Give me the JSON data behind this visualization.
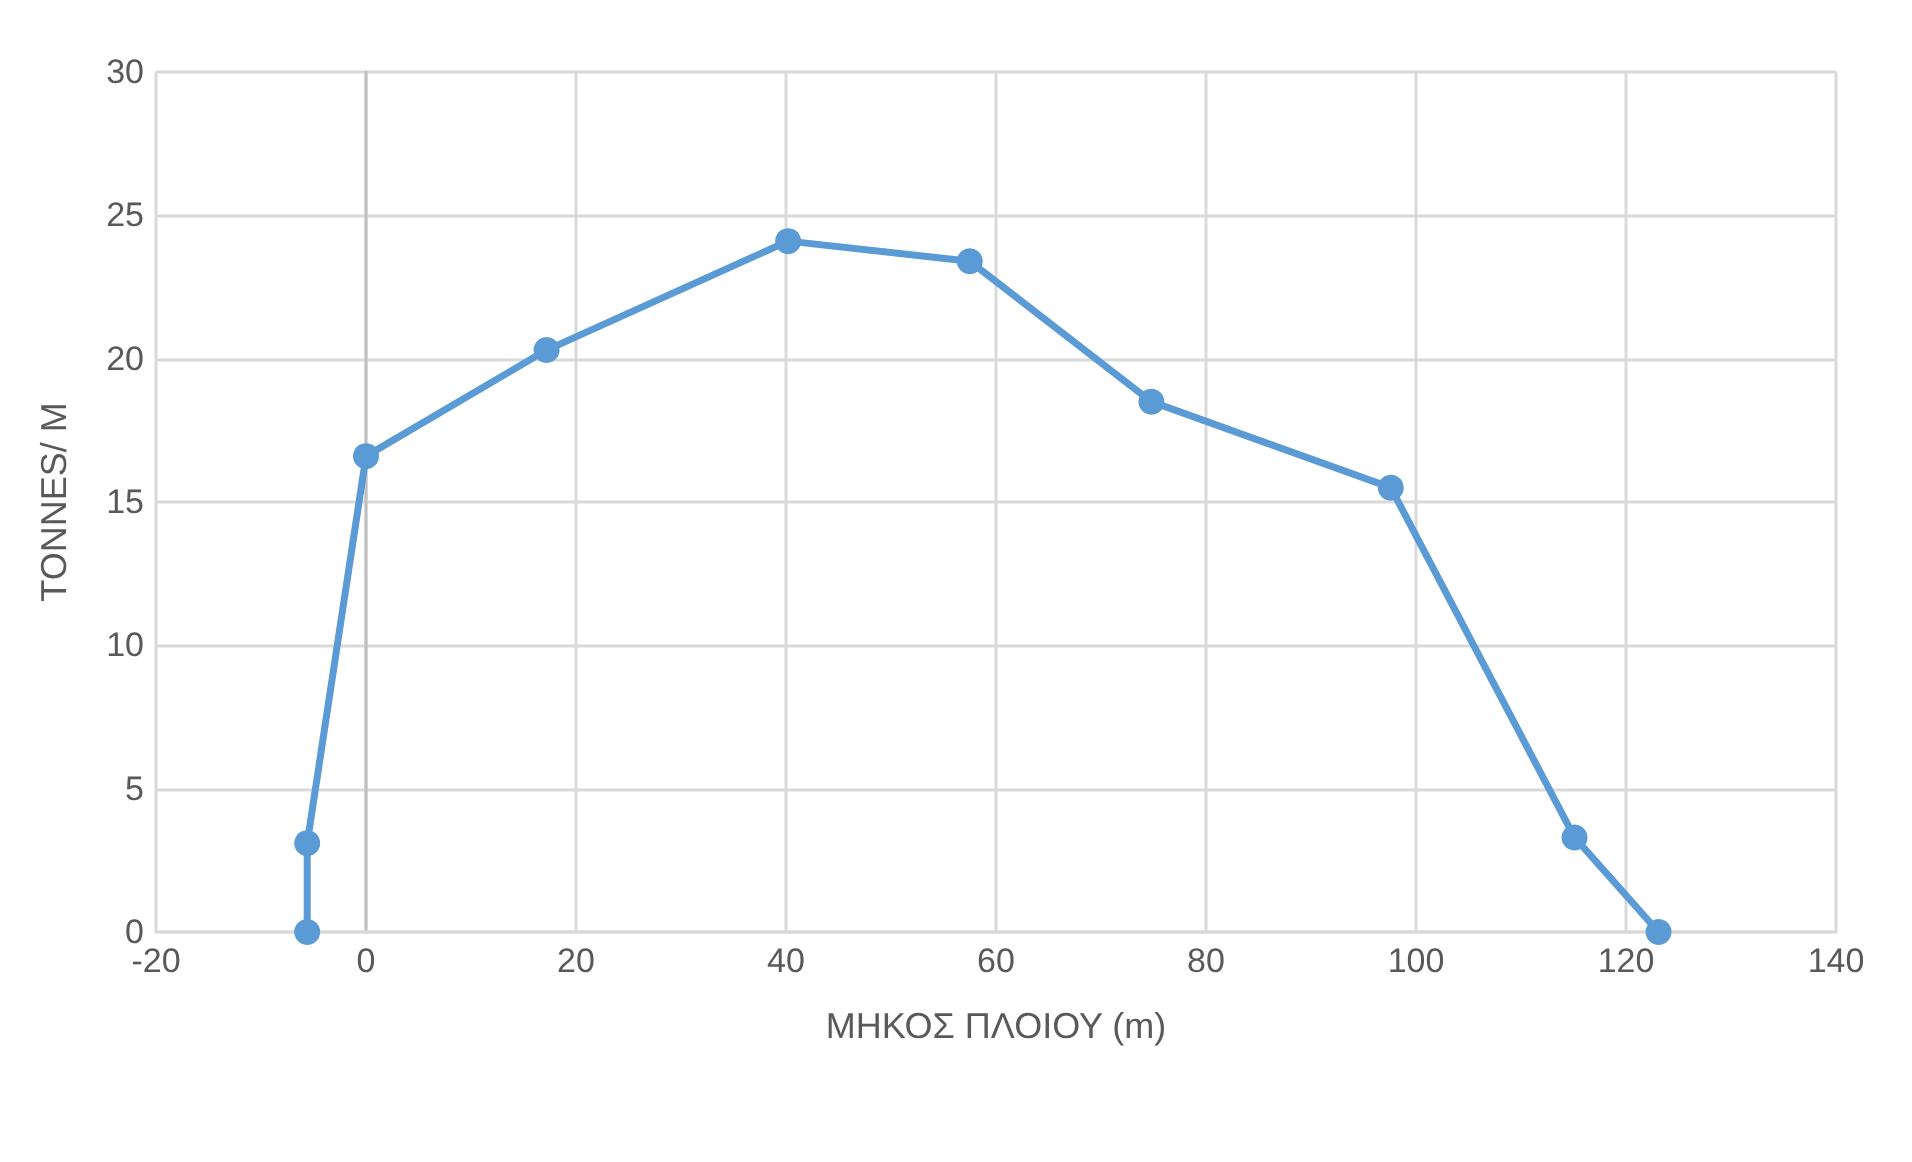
{
  "chart_data": {
    "type": "line",
    "xlabel": "ΜΗΚΟΣ ΠΛΟΙΟΥ (m)",
    "ylabel": "TONNES/ M",
    "series": [
      {
        "color": "#5b9bd5",
        "x": [
          -5.6,
          -5.6,
          0,
          17.2,
          40.2,
          57.5,
          74.8,
          97.6,
          115.1,
          123.1
        ],
        "values": [
          0,
          3.1,
          16.6,
          20.3,
          24.1,
          23.4,
          18.5,
          15.5,
          3.3,
          0
        ]
      }
    ],
    "xlim": [
      -20,
      140
    ],
    "xticks": [
      -20,
      0,
      20,
      40,
      60,
      80,
      100,
      120,
      140
    ],
    "ylim": [
      0,
      30
    ],
    "yticks": [
      0,
      5,
      10,
      15,
      20,
      25,
      30
    ],
    "grid": true,
    "marker": "circle",
    "line_style": "solid"
  }
}
